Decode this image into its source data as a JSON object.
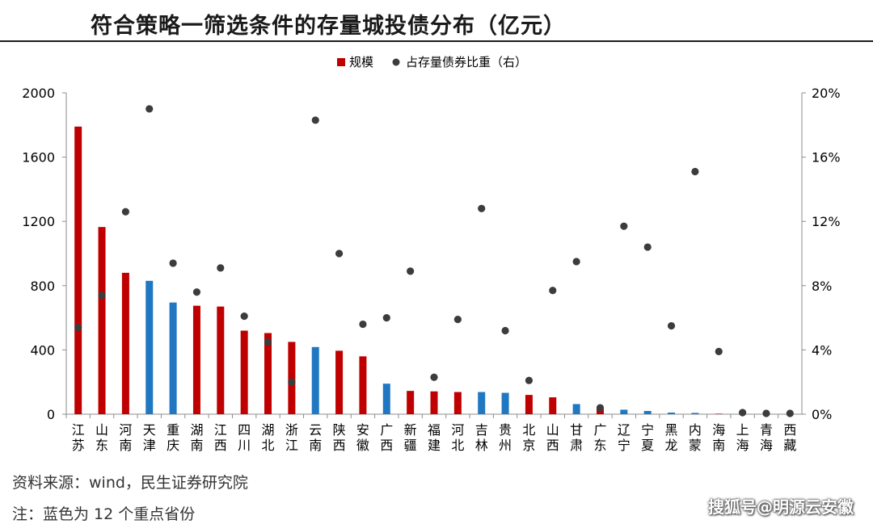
{
  "title": "符合策略一筛选条件的存量城投债分布（亿元）",
  "source": "资料来源：wind，民生证券研究院",
  "note": "注：蓝色为 12 个重点省份",
  "watermark": "搜狐号@明源云安徽",
  "colors": {
    "red": "#c00000",
    "blue": "#1f78c1",
    "dot": "#3c3c3c",
    "axis": "#8c8c8c"
  },
  "chart_data": {
    "type": "bar",
    "legend": [
      "规模",
      "占存量债券比重（右）"
    ],
    "legend_position": "top-center",
    "categories": [
      "江苏",
      "山东",
      "河南",
      "天津",
      "重庆",
      "湖南",
      "江西",
      "四川",
      "湖北",
      "浙江",
      "云南",
      "陕西",
      "安徽",
      "广西",
      "新疆",
      "福建",
      "河北",
      "吉林",
      "贵州",
      "北京",
      "山西",
      "甘肃",
      "广东",
      "辽宁",
      "宁夏",
      "黑龙",
      "内蒙",
      "海南",
      "上海",
      "青海",
      "西藏"
    ],
    "categories_lower": [
      "苏",
      "东",
      "南",
      "津",
      "庆",
      "南",
      "西",
      "川",
      "北",
      "江",
      "南",
      "西",
      "徽",
      "西",
      "疆",
      "建",
      "北",
      "林",
      "州",
      "京",
      "西",
      "肃",
      "东",
      "宁",
      "夏",
      "龙",
      "蒙",
      "南",
      "海",
      "海",
      "藏"
    ],
    "categories_upper": [
      "江",
      "山",
      "河",
      "天",
      "重",
      "湖",
      "江",
      "四",
      "湖",
      "浙",
      "云",
      "陕",
      "安",
      "广",
      "新",
      "福",
      "河",
      "吉",
      "贵",
      "北",
      "山",
      "甘",
      "广",
      "辽",
      "宁",
      "黑",
      "内",
      "海",
      "上",
      "青",
      "西"
    ],
    "series": [
      {
        "name": "规模",
        "axis": "left",
        "values": [
          1790,
          1165,
          880,
          830,
          695,
          675,
          670,
          520,
          505,
          450,
          418,
          395,
          360,
          190,
          145,
          142,
          138,
          138,
          133,
          120,
          105,
          63,
          35,
          28,
          20,
          10,
          8,
          3,
          0,
          0,
          0
        ],
        "highlight": [
          false,
          false,
          false,
          true,
          true,
          false,
          false,
          false,
          false,
          false,
          true,
          false,
          false,
          true,
          false,
          false,
          false,
          true,
          true,
          false,
          false,
          true,
          false,
          true,
          true,
          true,
          true,
          false,
          false,
          false,
          false
        ]
      },
      {
        "name": "占存量债券比重（右）",
        "axis": "right",
        "unit": "%",
        "values": [
          5.4,
          7.4,
          12.6,
          19.0,
          9.4,
          7.6,
          9.1,
          6.1,
          4.5,
          2.0,
          18.3,
          10.0,
          5.6,
          6.0,
          8.9,
          2.3,
          5.9,
          12.8,
          5.2,
          2.1,
          7.7,
          9.5,
          0.4,
          11.7,
          10.4,
          5.5,
          15.1,
          3.9,
          0.1,
          0.05,
          0.05
        ]
      }
    ],
    "ylim_left": [
      0,
      2000
    ],
    "yticks_left": [
      "0",
      "400",
      "800",
      "1200",
      "1600",
      "2000"
    ],
    "ylim_right": [
      0,
      20
    ],
    "yticks_right": [
      "0%",
      "4%",
      "8%",
      "12%",
      "16%",
      "20%"
    ]
  }
}
